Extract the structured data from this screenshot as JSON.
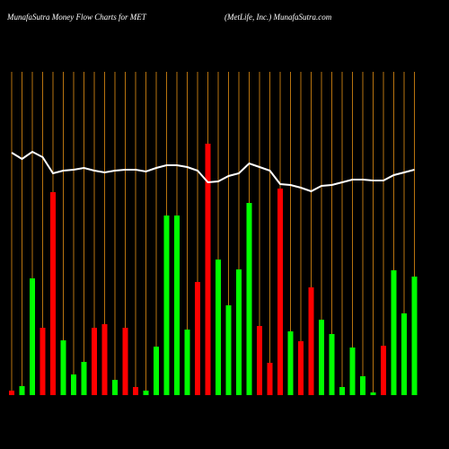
{
  "chart_data": {
    "type": "bar",
    "title": "MunafaSutra  Money Flow  Charts for MET",
    "subtitle": "(MetLife,  Inc.) MunafaSutra.com",
    "categories": [
      null,
      null,
      null,
      null,
      null,
      null,
      null,
      null,
      null,
      null,
      null,
      null,
      null,
      null,
      null,
      null,
      null,
      null,
      null,
      null,
      null,
      null,
      null,
      null,
      null,
      null,
      null,
      null,
      null,
      null,
      null,
      null,
      null,
      null,
      null,
      null,
      null,
      null,
      null,
      null
    ],
    "values": [
      5,
      10,
      130,
      75,
      226,
      61,
      23,
      37,
      75,
      79,
      17,
      75,
      9,
      5,
      54,
      200,
      200,
      73,
      126,
      280,
      151,
      100,
      140,
      214,
      77,
      36,
      230,
      71,
      60,
      120,
      84,
      68,
      9,
      53,
      21,
      3,
      55,
      139,
      91,
      132
    ],
    "colors": [
      "#ff0000",
      "#00ff00",
      "#00ff00",
      "#ff0000",
      "#ff0000",
      "#00ff00",
      "#00ff00",
      "#00ff00",
      "#ff0000",
      "#ff0000",
      "#00ff00",
      "#ff0000",
      "#ff0000",
      "#00ff00",
      "#00ff00",
      "#00ff00",
      "#00ff00",
      "#00ff00",
      "#ff0000",
      "#ff0000",
      "#00ff00",
      "#00ff00",
      "#00ff00",
      "#00ff00",
      "#ff0000",
      "#ff0000",
      "#ff0000",
      "#00ff00",
      "#ff0000",
      "#ff0000",
      "#00ff00",
      "#00ff00",
      "#00ff00",
      "#00ff00",
      "#00ff00",
      "#00ff00",
      "#ff0000",
      "#00ff00",
      "#00ff00",
      "#00ff00"
    ],
    "line": {
      "color": "#ffffff",
      "values": [
        270,
        263,
        271,
        265,
        247,
        250,
        251,
        253,
        250,
        248,
        250,
        251,
        251,
        249,
        253,
        256,
        256,
        254,
        250,
        237,
        238,
        244,
        247,
        258,
        254,
        250,
        235,
        234,
        231,
        227,
        233,
        234,
        237,
        240,
        240,
        239,
        239,
        245,
        248,
        251
      ]
    },
    "ylim": [
      0,
      300
    ],
    "grid": true,
    "grid_color": "#b8730f"
  }
}
